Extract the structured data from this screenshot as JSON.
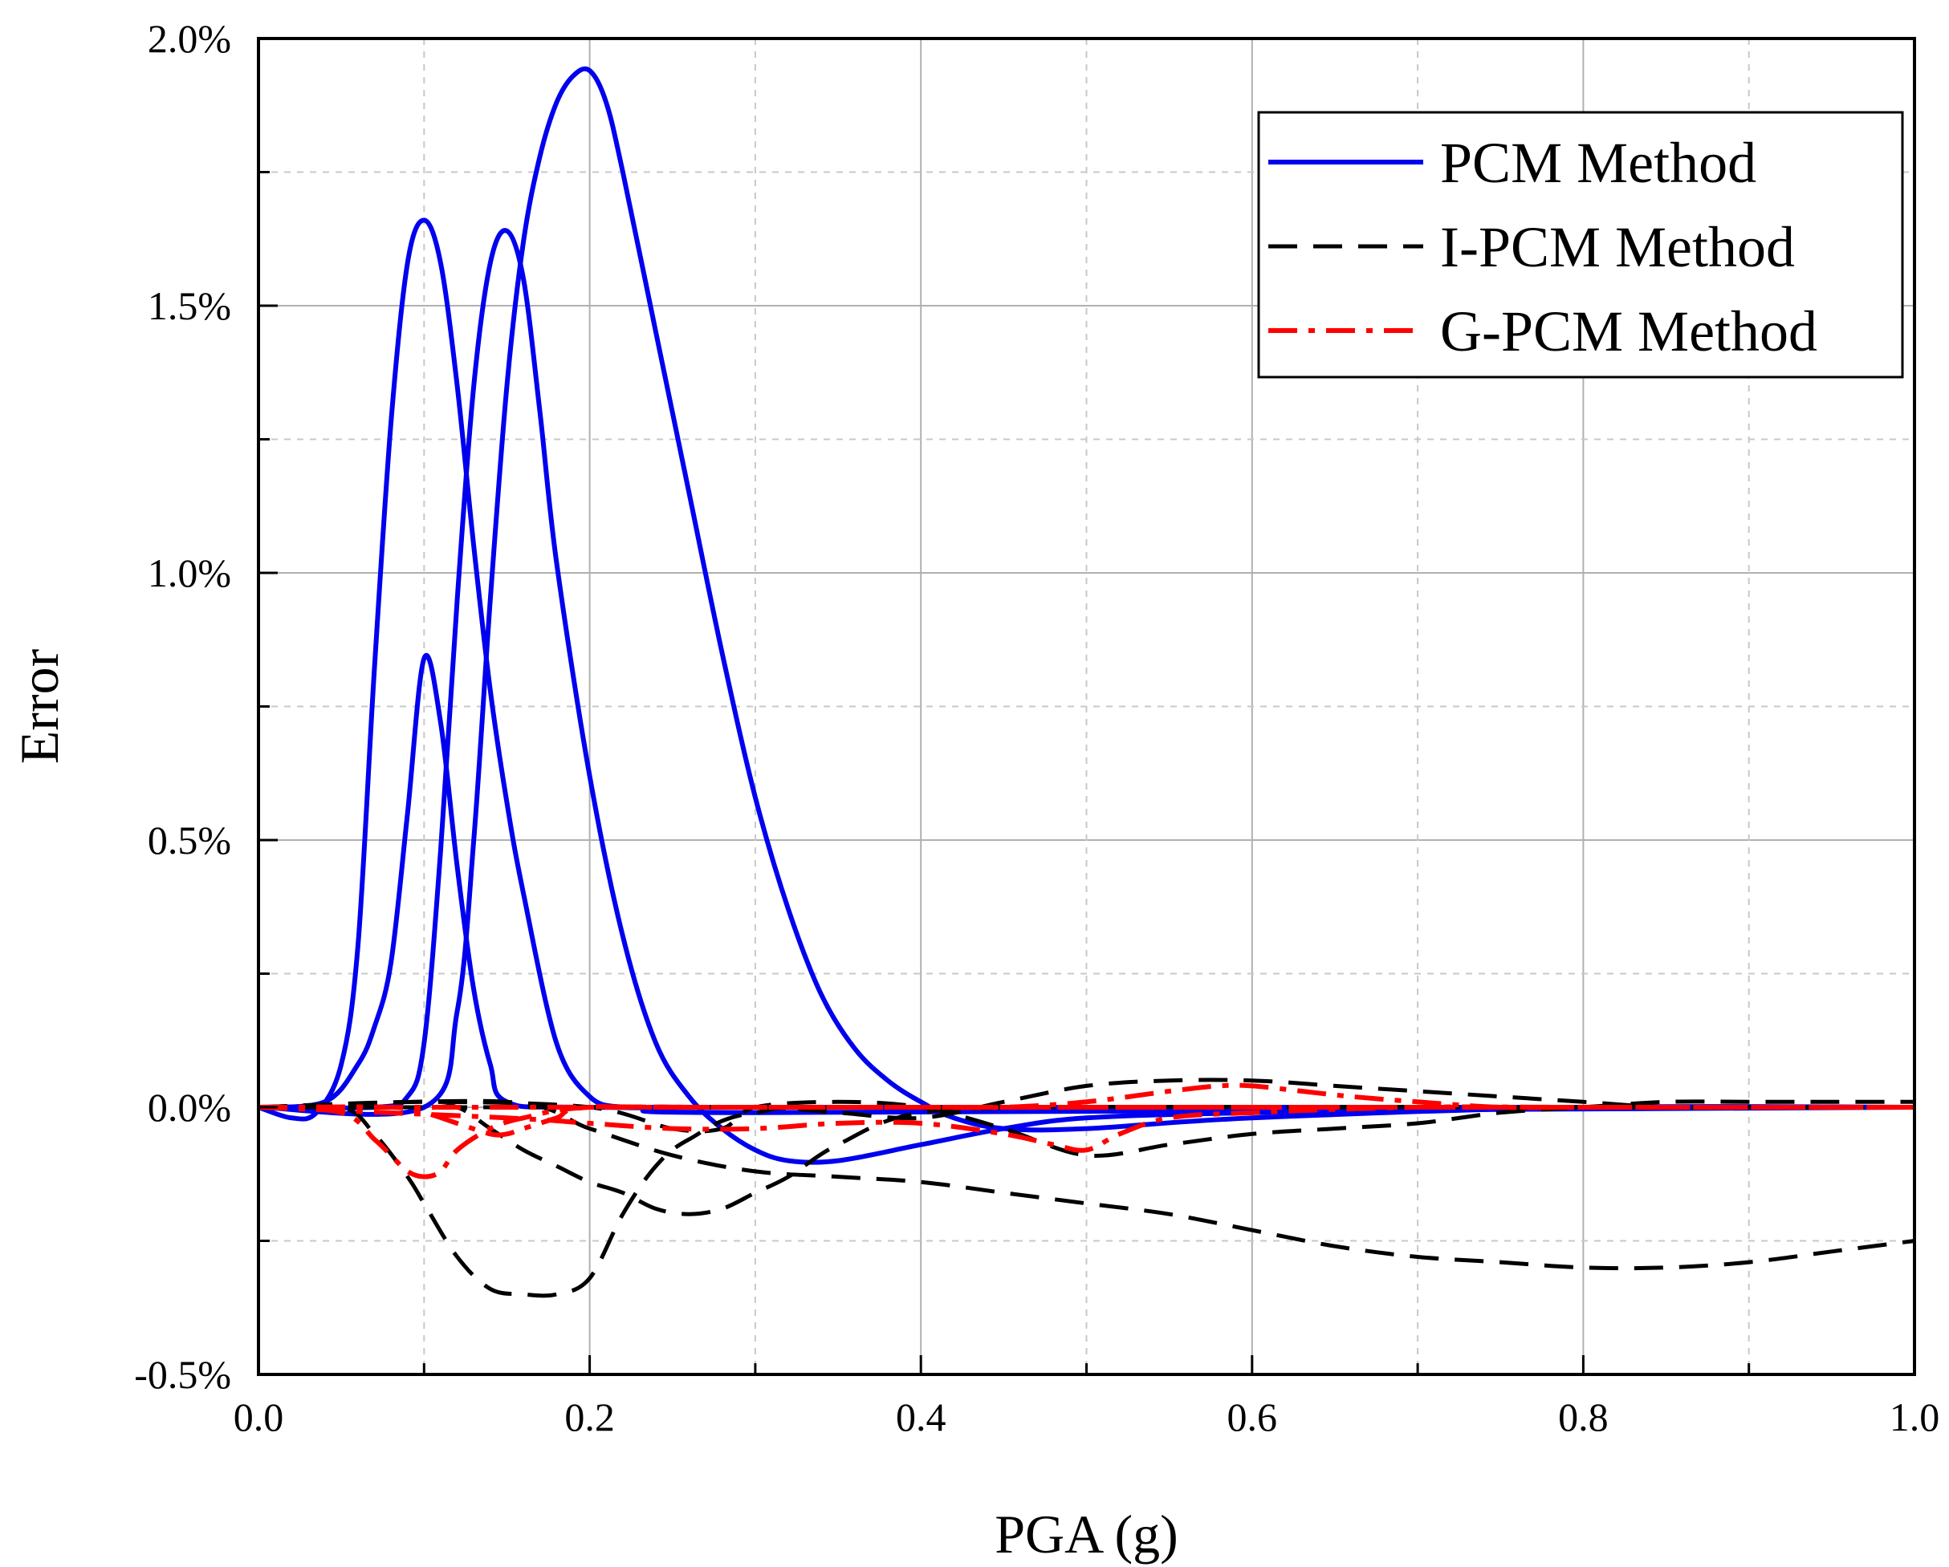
{
  "chart_data": {
    "type": "line",
    "title": "",
    "xlabel": "PGA (g)",
    "ylabel": "Error",
    "xlim": [
      0.0,
      1.0
    ],
    "ylim": [
      -0.005,
      0.02
    ],
    "grid": true,
    "legend_position": "top-right",
    "x_ticks": [
      {
        "value": 0.0,
        "label": "0.0"
      },
      {
        "value": 0.2,
        "label": "0.2"
      },
      {
        "value": 0.4,
        "label": "0.4"
      },
      {
        "value": 0.6,
        "label": "0.6"
      },
      {
        "value": 0.8,
        "label": "0.8"
      },
      {
        "value": 1.0,
        "label": "1.0"
      }
    ],
    "y_ticks": [
      {
        "value": -0.005,
        "label": "-0.5%"
      },
      {
        "value": 0.0,
        "label": "0.0%"
      },
      {
        "value": 0.005,
        "label": "0.5%"
      },
      {
        "value": 0.01,
        "label": "1.0%"
      },
      {
        "value": 0.015,
        "label": "1.5%"
      },
      {
        "value": 0.02,
        "label": "2.0%"
      }
    ],
    "legend": [
      {
        "label": "PCM Method",
        "color": "#0000ee",
        "style": "solid"
      },
      {
        "label": "I-PCM Method",
        "color": "#000000",
        "style": "dash"
      },
      {
        "label": "G-PCM Method",
        "color": "#ff0000",
        "style": "dashdot"
      }
    ],
    "series": [
      {
        "name": "PCM Method",
        "group": "PCM Method",
        "color": "#0000ee",
        "style": "solid",
        "x": [
          0,
          0.02,
          0.035,
          0.05,
          0.06,
          0.07,
          0.08,
          0.09,
          0.1,
          0.11,
          0.12,
          0.13,
          0.14,
          0.15,
          0.16,
          0.18,
          0.2,
          0.22,
          0.25,
          0.3,
          1.0
        ],
        "y": [
          0,
          -0.0002,
          -0.0001,
          0.0008,
          0.003,
          0.0082,
          0.0128,
          0.0158,
          0.0166,
          0.0158,
          0.0135,
          0.0105,
          0.0078,
          0.0057,
          0.004,
          0.0012,
          0.0002,
          0.0,
          0.0,
          -0.0001,
          0
        ]
      },
      {
        "name": "PCM Method (2)",
        "group": "PCM Method",
        "color": "#0000ee",
        "style": "solid",
        "x": [
          0,
          0.04,
          0.06,
          0.07,
          0.08,
          0.09,
          0.1,
          0.11,
          0.12,
          0.13,
          0.14,
          0.15,
          0.2,
          0.4,
          1.0
        ],
        "y": [
          0,
          0.0001,
          0.0008,
          0.0015,
          0.0027,
          0.0055,
          0.0084,
          0.0072,
          0.0045,
          0.0022,
          0.0008,
          0.0001,
          0.0,
          0.0,
          0
        ]
      },
      {
        "name": "PCM Method (3)",
        "group": "PCM Method",
        "color": "#0000ee",
        "style": "solid",
        "x": [
          0,
          0.07,
          0.09,
          0.1,
          0.11,
          0.12,
          0.13,
          0.14,
          0.15,
          0.16,
          0.17,
          0.18,
          0.2,
          0.22,
          0.24,
          0.26,
          0.28,
          0.3,
          0.32,
          0.35,
          0.4,
          0.45,
          0.5,
          0.6,
          0.8,
          1.0
        ],
        "y": [
          0,
          0.0,
          0.0002,
          0.0012,
          0.0048,
          0.0095,
          0.0135,
          0.0158,
          0.0164,
          0.0155,
          0.013,
          0.0102,
          0.0062,
          0.0032,
          0.0012,
          0.0002,
          -0.0004,
          -0.0008,
          -0.001,
          -0.001,
          -0.0007,
          -0.0004,
          -0.0002,
          -0.0001,
          0.0,
          0
        ]
      },
      {
        "name": "PCM Method (4)",
        "group": "PCM Method",
        "color": "#0000ee",
        "style": "solid",
        "x": [
          0,
          0.1,
          0.12,
          0.13,
          0.14,
          0.15,
          0.16,
          0.17,
          0.18,
          0.19,
          0.2,
          0.21,
          0.22,
          0.24,
          0.26,
          0.28,
          0.3,
          0.32,
          0.34,
          0.36,
          0.38,
          0.4,
          0.42,
          0.45,
          0.5,
          0.6,
          0.8,
          1.0
        ],
        "y": [
          0,
          0.0,
          0.0018,
          0.005,
          0.0095,
          0.0135,
          0.0162,
          0.0178,
          0.0188,
          0.0193,
          0.0194,
          0.0188,
          0.0175,
          0.0145,
          0.0115,
          0.0085,
          0.0058,
          0.0037,
          0.0021,
          0.0011,
          0.0005,
          0.0001,
          -0.0002,
          -0.0004,
          -0.0004,
          -0.0002,
          0.0,
          0
        ]
      },
      {
        "name": "I-PCM Method",
        "group": "I-PCM Method",
        "color": "#000000",
        "style": "dash",
        "x": [
          0,
          0.05,
          0.07,
          0.09,
          0.1,
          0.12,
          0.14,
          0.16,
          0.18,
          0.2,
          0.22,
          0.24,
          0.26,
          0.3,
          0.4,
          1.0
        ],
        "y": [
          0,
          0.0,
          -0.0005,
          -0.0013,
          -0.0018,
          -0.0028,
          -0.0034,
          -0.0035,
          -0.0035,
          -0.0032,
          -0.002,
          -0.0011,
          -0.0006,
          -0.0001,
          0.0,
          0
        ]
      },
      {
        "name": "I-PCM Method (2)",
        "group": "I-PCM Method",
        "color": "#000000",
        "style": "dash",
        "x": [
          0,
          0.1,
          0.12,
          0.14,
          0.16,
          0.18,
          0.2,
          0.22,
          0.24,
          0.26,
          0.28,
          0.3,
          0.32,
          0.35,
          0.4,
          0.5,
          0.6,
          0.7,
          0.8,
          0.9,
          1.0
        ],
        "y": [
          0,
          0.0,
          0.0,
          -0.0004,
          -0.0008,
          -0.0011,
          -0.0014,
          -0.0016,
          -0.0019,
          -0.002,
          -0.0019,
          -0.0016,
          -0.0013,
          -0.0007,
          -0.0001,
          0.0,
          0.0,
          0.0,
          0.0,
          0.0,
          0
        ]
      },
      {
        "name": "I-PCM Method (3)",
        "group": "I-PCM Method",
        "color": "#000000",
        "style": "dash",
        "x": [
          0,
          0.15,
          0.2,
          0.25,
          0.3,
          0.35,
          0.4,
          0.45,
          0.5,
          0.55,
          0.6,
          0.65,
          0.7,
          0.75,
          0.8,
          0.85,
          0.9,
          0.95,
          1.0
        ],
        "y": [
          0,
          0.0001,
          -0.0004,
          -0.0009,
          -0.0012,
          -0.0013,
          -0.0014,
          -0.0016,
          -0.0018,
          -0.002,
          -0.0023,
          -0.0026,
          -0.0028,
          -0.0029,
          -0.003,
          -0.003,
          -0.0029,
          -0.0027,
          -0.0025
        ]
      },
      {
        "name": "I-PCM Method (4)",
        "group": "I-PCM Method",
        "color": "#000000",
        "style": "dash",
        "x": [
          0,
          0.1,
          0.2,
          0.25,
          0.28,
          0.3,
          0.35,
          0.4,
          0.45,
          0.5,
          0.55,
          0.6,
          0.65,
          0.7,
          0.75,
          0.8,
          0.85,
          0.9,
          0.95,
          1.0
        ],
        "y": [
          0,
          0.0001,
          0.0,
          -0.0004,
          -0.0004,
          0.0,
          0.0001,
          0.0,
          -0.0004,
          -0.0009,
          -0.0007,
          -0.0005,
          -0.0004,
          -0.0003,
          -0.0001,
          0.0,
          0.0001,
          0.0001,
          0.0001,
          0.0001
        ]
      },
      {
        "name": "I-PCM Method (5)",
        "group": "I-PCM Method",
        "color": "#000000",
        "style": "dash",
        "x": [
          0,
          0.2,
          0.3,
          0.35,
          0.4,
          0.45,
          0.5,
          0.55,
          0.6,
          0.65,
          0.7,
          0.75,
          0.8,
          0.85,
          0.9,
          1.0
        ],
        "y": [
          0,
          0.0,
          0.0,
          -0.0001,
          -0.0002,
          0.0001,
          0.0004,
          0.0005,
          0.0005,
          0.0004,
          0.0003,
          0.0002,
          0.0001,
          0.0,
          0.0,
          0
        ]
      },
      {
        "name": "G-PCM Method",
        "group": "G-PCM Method",
        "color": "#ff0000",
        "style": "dashdot",
        "x": [
          0,
          0.05,
          0.07,
          0.08,
          0.09,
          0.1,
          0.11,
          0.12,
          0.14,
          0.16,
          0.2,
          0.3,
          1.0
        ],
        "y": [
          0,
          -0.0001,
          -0.0006,
          -0.0009,
          -0.0012,
          -0.0013,
          -0.0012,
          -0.0008,
          -0.0004,
          -0.0002,
          0.0,
          0.0,
          0
        ]
      },
      {
        "name": "G-PCM Method (2)",
        "group": "G-PCM Method",
        "color": "#ff0000",
        "style": "dashdot",
        "x": [
          0,
          0.08,
          0.1,
          0.12,
          0.14,
          0.15,
          0.16,
          0.18,
          0.2,
          0.3,
          1.0
        ],
        "y": [
          0,
          0.0,
          -0.0001,
          -0.0003,
          -0.0005,
          -0.0005,
          -0.0004,
          -0.0002,
          0.0,
          0.0,
          0
        ]
      },
      {
        "name": "G-PCM Method (3)",
        "group": "G-PCM Method",
        "color": "#ff0000",
        "style": "dashdot",
        "x": [
          0,
          0.15,
          0.2,
          0.25,
          0.3,
          0.35,
          0.4,
          0.45,
          0.48,
          0.5,
          0.52,
          0.55,
          0.6,
          0.7,
          0.8,
          1.0
        ],
        "y": [
          0,
          -0.0002,
          -0.0003,
          -0.0004,
          -0.0004,
          -0.0003,
          -0.0003,
          -0.0005,
          -0.0007,
          -0.0008,
          -0.0005,
          -0.0002,
          -0.0001,
          0.0,
          0.0,
          0
        ]
      },
      {
        "name": "G-PCM Method (4)",
        "group": "G-PCM Method",
        "color": "#ff0000",
        "style": "dashdot",
        "x": [
          0,
          0.3,
          0.4,
          0.45,
          0.5,
          0.55,
          0.58,
          0.6,
          0.63,
          0.66,
          0.7,
          0.75,
          0.8,
          0.9,
          1.0
        ],
        "y": [
          0,
          0.0,
          0.0,
          0.0,
          0.0001,
          0.0003,
          0.0004,
          0.0004,
          0.0003,
          0.0002,
          0.0001,
          0.0,
          0.0,
          0.0,
          0
        ]
      }
    ]
  }
}
